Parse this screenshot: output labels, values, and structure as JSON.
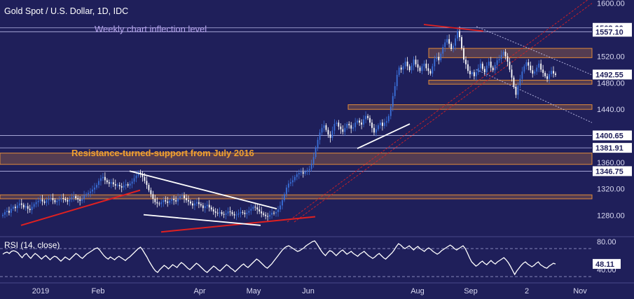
{
  "colors": {
    "background": "#1f1f5a",
    "bullish_candle": "#3a6fd8",
    "bearish_candle": "#ffffff",
    "support_band": "#e08a3a",
    "trend_red": "#e02020",
    "trend_white": "#ffffff",
    "channel": "#c8c8f0",
    "level_line": "#b8b8e8",
    "label_bg": "#ffffff",
    "label_text": "#1f1f5a",
    "rsi_line": "#ffffff",
    "annotation_purple": "#b9a7f0",
    "annotation_orange": "#f0a030"
  },
  "chart_data": [
    {
      "type": "candlestick",
      "title": "Gold Spot / U.S. Dollar, 1D, IDC",
      "x_tick_labels": [
        "2019",
        "Feb",
        "Apr",
        "May",
        "Jun",
        "Aug",
        "Sep",
        "2",
        "Nov"
      ],
      "y_tick_labels": [
        "1600.00",
        "1560.00",
        "1520.00",
        "1480.00",
        "1440.00",
        "1400.00",
        "1360.00",
        "1320.00",
        "1280.00"
      ],
      "ylim": [
        1250,
        1605
      ],
      "level_labels": [
        "1563.00",
        "1557.10",
        "1492.55",
        "1400.65",
        "1381.91",
        "1346.75"
      ],
      "levels": [
        1563.0,
        1557.1,
        1400.65,
        1381.91,
        1346.75
      ],
      "current_price": "1492.55",
      "support_bands": [
        {
          "low": 1357,
          "high": 1374
        },
        {
          "low": 1305,
          "high": 1311
        },
        {
          "low": 1518,
          "high": 1532
        },
        {
          "low": 1478,
          "high": 1484
        },
        {
          "low": 1440,
          "high": 1447
        }
      ],
      "annotations": [
        {
          "text": "Weekly chart inflection level",
          "color": "annotation_purple"
        },
        {
          "text": "Resistance-turned-support from July 2016",
          "color": "annotation_orange"
        }
      ],
      "close": [
        1281,
        1285,
        1287,
        1284,
        1290,
        1293,
        1291,
        1295,
        1298,
        1296,
        1292,
        1294,
        1290,
        1288,
        1293,
        1297,
        1300,
        1302,
        1304,
        1301,
        1299,
        1303,
        1305,
        1306,
        1303,
        1300,
        1302,
        1304,
        1306,
        1305,
        1303,
        1301,
        1304,
        1307,
        1309,
        1306,
        1304,
        1302,
        1305,
        1310,
        1312,
        1314,
        1316,
        1319,
        1322,
        1326,
        1332,
        1336,
        1338,
        1333,
        1330,
        1328,
        1330,
        1327,
        1325,
        1326,
        1324,
        1322,
        1325,
        1327,
        1325,
        1328,
        1331,
        1336,
        1340,
        1345,
        1342,
        1338,
        1332,
        1326,
        1318,
        1312,
        1305,
        1300,
        1298,
        1297,
        1300,
        1303,
        1301,
        1299,
        1302,
        1305,
        1303,
        1301,
        1306,
        1309,
        1310,
        1306,
        1303,
        1301,
        1298,
        1295,
        1298,
        1300,
        1297,
        1295,
        1291,
        1294,
        1296,
        1292,
        1289,
        1286,
        1284,
        1283,
        1285,
        1282,
        1281,
        1283,
        1286,
        1285,
        1282,
        1280,
        1281,
        1283,
        1285,
        1284,
        1282,
        1284,
        1287,
        1290,
        1293,
        1292,
        1289,
        1286,
        1283,
        1281,
        1279,
        1278,
        1281,
        1284,
        1283,
        1285,
        1289,
        1295,
        1303,
        1312,
        1322,
        1328,
        1330,
        1333,
        1338,
        1342,
        1344,
        1345,
        1343,
        1346,
        1348,
        1350,
        1358,
        1368,
        1382,
        1394,
        1405,
        1412,
        1416,
        1409,
        1402,
        1397,
        1408,
        1418,
        1420,
        1414,
        1410,
        1406,
        1412,
        1418,
        1416,
        1411,
        1413,
        1420,
        1423,
        1420,
        1417,
        1425,
        1430,
        1427,
        1420,
        1412,
        1405,
        1410,
        1416,
        1420,
        1415,
        1420,
        1422,
        1430,
        1444,
        1460,
        1475,
        1492,
        1503,
        1500,
        1505,
        1512,
        1505,
        1499,
        1506,
        1515,
        1508,
        1503,
        1498,
        1505,
        1509,
        1502,
        1498,
        1494,
        1505,
        1516,
        1519,
        1514,
        1524,
        1534,
        1541,
        1546,
        1539,
        1531,
        1536,
        1547,
        1558,
        1549,
        1532,
        1515,
        1508,
        1498,
        1493,
        1496,
        1490,
        1496,
        1502,
        1509,
        1501,
        1496,
        1506,
        1512,
        1503,
        1499,
        1507,
        1514,
        1516,
        1522,
        1527,
        1520,
        1512,
        1500,
        1488,
        1474,
        1462,
        1476,
        1486,
        1497,
        1505,
        1511,
        1506,
        1499,
        1494,
        1497,
        1503,
        1509,
        1500,
        1495,
        1490,
        1486,
        1493,
        1498,
        1494,
        1492
      ],
      "rsi": {
        "label": "RSI (14, close)",
        "ylim": [
          25,
          85
        ],
        "tick_labels": [
          "80.00",
          "40.00"
        ],
        "levels": [
          70,
          30
        ],
        "current": "48.11",
        "values": [
          62,
          64,
          65,
          63,
          66,
          67,
          66,
          64,
          60,
          57,
          61,
          63,
          59,
          56,
          60,
          63,
          61,
          58,
          55,
          58,
          60,
          57,
          54,
          57,
          59,
          58,
          55,
          52,
          55,
          58,
          56,
          54,
          57,
          60,
          63,
          61,
          58,
          56,
          59,
          62,
          64,
          66,
          68,
          70,
          71,
          68,
          64,
          60,
          57,
          55,
          58,
          56,
          54,
          57,
          59,
          57,
          55,
          53,
          56,
          58,
          61,
          64,
          67,
          70,
          72,
          68,
          63,
          58,
          52,
          47,
          42,
          38,
          36,
          40,
          43,
          46,
          44,
          41,
          44,
          47,
          45,
          43,
          47,
          50,
          48,
          45,
          42,
          40,
          43,
          46,
          49,
          47,
          44,
          41,
          38,
          36,
          39,
          42,
          45,
          43,
          40,
          38,
          41,
          44,
          47,
          45,
          42,
          40,
          37,
          40,
          43,
          46,
          48,
          45,
          43,
          46,
          49,
          52,
          55,
          53,
          50,
          47,
          44,
          42,
          45,
          48,
          52,
          56,
          60,
          64,
          68,
          71,
          73,
          74,
          72,
          70,
          68,
          66,
          67,
          69,
          71,
          74,
          76,
          78,
          80,
          81,
          77,
          72,
          67,
          63,
          60,
          64,
          67,
          66,
          63,
          60,
          63,
          66,
          68,
          65,
          62,
          64,
          66,
          63,
          61,
          59,
          62,
          64,
          66,
          63,
          60,
          58,
          56,
          58,
          61,
          63,
          60,
          57,
          55,
          58,
          61,
          64,
          68,
          73,
          77,
          75,
          72,
          70,
          72,
          74,
          71,
          68,
          71,
          73,
          70,
          68,
          66,
          69,
          71,
          69,
          66,
          64,
          62,
          64,
          67,
          69,
          71,
          73,
          75,
          73,
          70,
          68,
          70,
          72,
          74,
          70,
          64,
          57,
          51,
          48,
          45,
          47,
          50,
          52,
          49,
          47,
          50,
          53,
          50,
          48,
          51,
          53,
          55,
          57,
          54,
          50,
          45,
          39,
          33,
          38,
          42,
          46,
          49,
          51,
          48,
          46,
          44,
          46,
          49,
          51,
          47,
          45,
          43,
          42,
          45,
          47,
          49,
          48
        ]
      }
    }
  ]
}
